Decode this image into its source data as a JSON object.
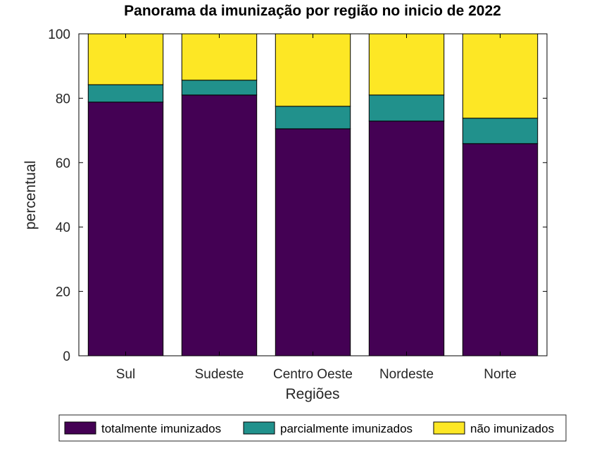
{
  "chart_data": {
    "type": "bar",
    "stacked": true,
    "title": "Panorama da imunização por região no inicio de 2022",
    "xlabel": "Regiões",
    "ylabel": "percentual",
    "ylim": [
      0,
      100
    ],
    "yticks": [
      "0",
      "20",
      "40",
      "60",
      "80",
      "100"
    ],
    "categories": [
      "Sul",
      "Sudeste",
      "Centro Oeste",
      "Nordeste",
      "Norte"
    ],
    "series": [
      {
        "name": "totalmente imunizados",
        "color": "#440154",
        "values": [
          78.8,
          81.0,
          70.5,
          72.9,
          65.9
        ]
      },
      {
        "name": "parcialmente imunizados",
        "color": "#21918c",
        "values": [
          5.4,
          4.6,
          7.0,
          8.1,
          7.9
        ]
      },
      {
        "name": "não imunizados",
        "color": "#fde725",
        "values": [
          15.8,
          14.4,
          22.5,
          19.0,
          26.2
        ]
      }
    ],
    "grid": false,
    "legend_position": "bottom"
  }
}
